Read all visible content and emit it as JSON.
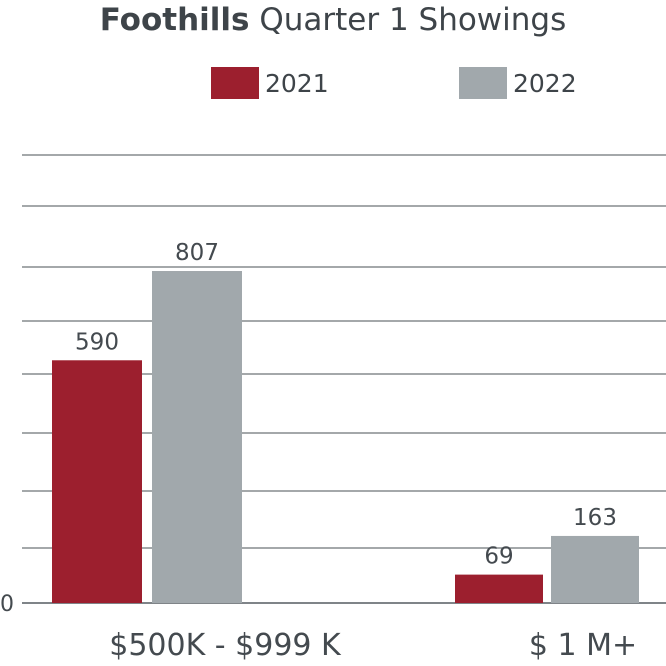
{
  "chart_data": {
    "type": "bar",
    "title_bold": "Foothills",
    "title_rest": " Quarter 1 Showings",
    "categories": [
      "$500K - $999 K",
      "$ 1 M+"
    ],
    "series": [
      {
        "name": "2021",
        "color": "#9c1f2e",
        "values": [
          590,
          69
        ]
      },
      {
        "name": "2022",
        "color": "#a1a8ac",
        "values": [
          807,
          163
        ]
      }
    ],
    "ytick_label": "0",
    "ylim": [
      0,
      1089
    ],
    "grid": true,
    "legend": "top-center"
  }
}
